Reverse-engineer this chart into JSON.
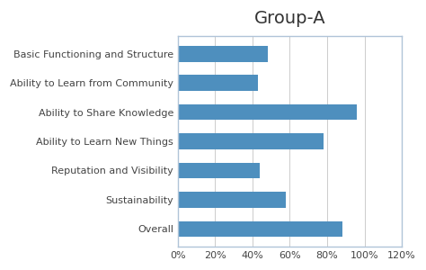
{
  "title": "Group-A",
  "categories": [
    "Basic Functioning and Structure",
    "Ability to Learn from Community",
    "Ability to Share Knowledge",
    "Ability to Learn New Things",
    "Reputation and Visibility",
    "Sustainability",
    "Overall"
  ],
  "values": [
    0.48,
    0.43,
    0.96,
    0.78,
    0.44,
    0.58,
    0.88
  ],
  "bar_color": "#4e8fbe",
  "xlim": [
    0,
    1.2
  ],
  "xticks": [
    0,
    0.2,
    0.4,
    0.6,
    0.8,
    1.0,
    1.2
  ],
  "xtick_labels": [
    "0%",
    "20%",
    "40%",
    "60%",
    "80%",
    "100%",
    "120%"
  ],
  "title_fontsize": 14,
  "label_fontsize": 8,
  "tick_fontsize": 8,
  "background_color": "#ffffff",
  "border_color": "#b0c4d8"
}
